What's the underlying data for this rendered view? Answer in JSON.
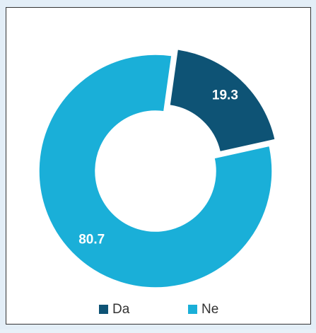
{
  "chart_data": {
    "type": "pie",
    "donut": true,
    "categories": [
      "Da",
      "Ne"
    ],
    "values": [
      19.3,
      80.7
    ],
    "colors": [
      "#0e5375",
      "#1aafd8"
    ],
    "explode": [
      true,
      false
    ],
    "legend": "bottom"
  }
}
